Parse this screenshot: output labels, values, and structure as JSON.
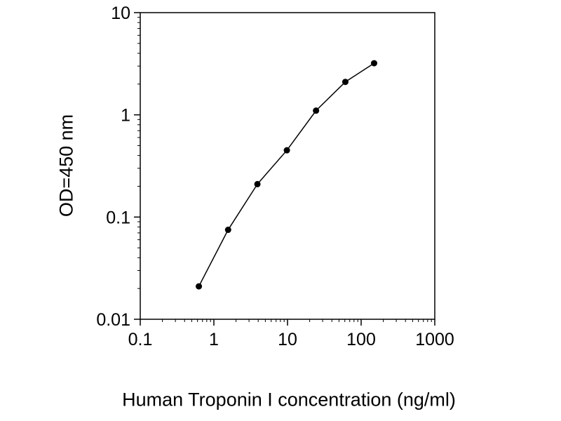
{
  "figure": {
    "background": "#ffffff",
    "frame_color": "#000000"
  },
  "chart_data": {
    "type": "scatter",
    "title": "",
    "xlabel": "Human Troponin I concentration (ng/ml)",
    "ylabel": "OD=450 nm",
    "x_scale": "log",
    "y_scale": "log",
    "xlim": [
      0.1,
      1000
    ],
    "ylim": [
      0.01,
      10
    ],
    "x_ticks": [
      0.1,
      1,
      10,
      100,
      1000
    ],
    "y_ticks": [
      0.01,
      0.1,
      1,
      10
    ],
    "x": [
      0.625,
      1.56,
      3.9,
      9.8,
      24.4,
      61,
      150
    ],
    "y": [
      0.021,
      0.075,
      0.21,
      0.45,
      1.1,
      2.1,
      3.2
    ],
    "marker": "circle",
    "marker_color": "#000000",
    "line_color": "#000000",
    "grid": false,
    "legend": false
  }
}
